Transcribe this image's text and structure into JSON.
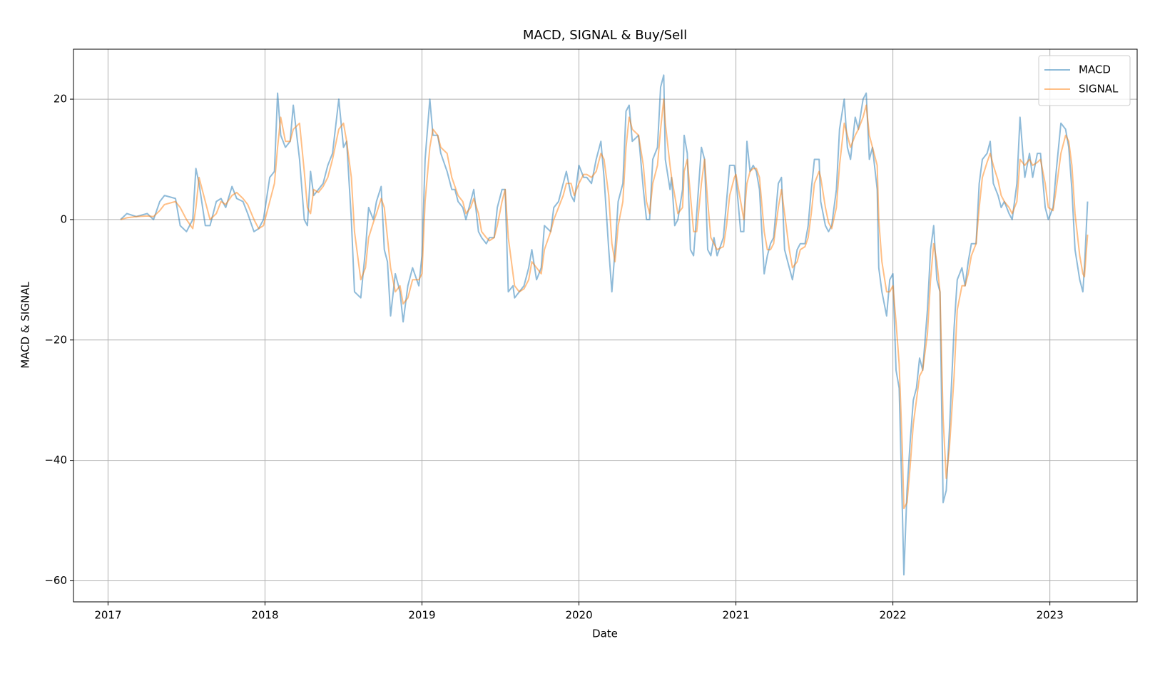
{
  "chart_data": {
    "type": "line",
    "title": "MACD, SIGNAL & Buy/Sell",
    "x_label": "Date",
    "y_label": "MACD & SIGNAL",
    "xlim": [
      2016.78,
      2023.556
    ],
    "xticks": [
      2017,
      2018,
      2019,
      2020,
      2021,
      2022,
      2023
    ],
    "ylim": [
      -63.5,
      28.3
    ],
    "yticks": [
      {
        "value": -60,
        "label": "−60"
      },
      {
        "value": -40,
        "label": "−40"
      },
      {
        "value": -20,
        "label": "−20"
      },
      0,
      20
    ],
    "grid": true,
    "legend": "upper right",
    "x": [
      2017.08,
      2017.12,
      2017.18,
      2017.25,
      2017.29,
      2017.33,
      2017.36,
      2017.43,
      2017.46,
      2017.5,
      2017.54,
      2017.56,
      2017.58,
      2017.62,
      2017.65,
      2017.69,
      2017.72,
      2017.75,
      2017.79,
      2017.82,
      2017.86,
      2017.89,
      2017.93,
      2017.96,
      2017.99,
      2018.03,
      2018.06,
      2018.08,
      2018.1,
      2018.13,
      2018.16,
      2018.18,
      2018.22,
      2018.25,
      2018.27,
      2018.29,
      2018.31,
      2018.34,
      2018.37,
      2018.4,
      2018.43,
      2018.47,
      2018.5,
      2018.52,
      2018.55,
      2018.57,
      2018.61,
      2018.64,
      2018.66,
      2018.69,
      2018.71,
      2018.74,
      2018.76,
      2018.78,
      2018.8,
      2018.83,
      2018.86,
      2018.88,
      2018.91,
      2018.94,
      2018.98,
      2019.0,
      2019.02,
      2019.05,
      2019.07,
      2019.1,
      2019.12,
      2019.16,
      2019.19,
      2019.21,
      2019.23,
      2019.26,
      2019.28,
      2019.31,
      2019.33,
      2019.36,
      2019.38,
      2019.41,
      2019.43,
      2019.46,
      2019.48,
      2019.51,
      2019.53,
      2019.55,
      2019.58,
      2019.59,
      2019.62,
      2019.65,
      2019.68,
      2019.7,
      2019.73,
      2019.76,
      2019.78,
      2019.82,
      2019.84,
      2019.87,
      2019.9,
      2019.92,
      2019.95,
      2019.97,
      2020.0,
      2020.03,
      2020.05,
      2020.08,
      2020.11,
      2020.14,
      2020.16,
      2020.19,
      2020.21,
      2020.23,
      2020.25,
      2020.28,
      2020.3,
      2020.32,
      2020.34,
      2020.38,
      2020.41,
      2020.43,
      2020.45,
      2020.47,
      2020.5,
      2020.52,
      2020.54,
      2020.55,
      2020.58,
      2020.59,
      2020.61,
      2020.63,
      2020.66,
      2020.67,
      2020.69,
      2020.71,
      2020.73,
      2020.75,
      2020.78,
      2020.8,
      2020.82,
      2020.84,
      2020.86,
      2020.88,
      2020.92,
      2020.94,
      2020.96,
      2020.99,
      2021.0,
      2021.03,
      2021.05,
      2021.07,
      2021.09,
      2021.11,
      2021.13,
      2021.15,
      2021.18,
      2021.2,
      2021.22,
      2021.24,
      2021.27,
      2021.29,
      2021.31,
      2021.34,
      2021.36,
      2021.39,
      2021.41,
      2021.44,
      2021.46,
      2021.48,
      2021.5,
      2021.53,
      2021.54,
      2021.57,
      2021.59,
      2021.61,
      2021.64,
      2021.66,
      2021.69,
      2021.71,
      2021.73,
      2021.76,
      2021.78,
      2021.81,
      2021.83,
      2021.85,
      2021.87,
      2021.9,
      2021.91,
      2021.93,
      2021.96,
      2021.98,
      2022.0,
      2022.02,
      2022.04,
      2022.06,
      2022.07,
      2022.09,
      2022.11,
      2022.13,
      2022.15,
      2022.17,
      2022.19,
      2022.22,
      2022.24,
      2022.26,
      2022.28,
      2022.3,
      2022.32,
      2022.34,
      2022.36,
      2022.39,
      2022.41,
      2022.44,
      2022.46,
      2022.48,
      2022.5,
      2022.53,
      2022.55,
      2022.57,
      2022.6,
      2022.62,
      2022.64,
      2022.67,
      2022.69,
      2022.71,
      2022.74,
      2022.76,
      2022.79,
      2022.81,
      2022.84,
      2022.87,
      2022.89,
      2022.92,
      2022.94,
      2022.97,
      2022.99,
      2023.02,
      2023.04,
      2023.07,
      2023.1,
      2023.12,
      2023.14,
      2023.16,
      2023.19,
      2023.21,
      2023.22,
      2023.24
    ],
    "series": [
      {
        "name": "MACD",
        "color": "#1f77b4",
        "values": [
          0,
          1,
          0.5,
          1,
          0,
          3,
          4,
          3.5,
          -1,
          -2,
          0,
          8.5,
          6,
          -1,
          -1,
          3,
          3.5,
          2,
          5.5,
          3.5,
          3,
          1,
          -2,
          -1.5,
          0,
          7,
          8,
          21,
          14,
          12,
          13,
          19,
          10,
          0,
          -1,
          8,
          4,
          5,
          6,
          9,
          11,
          20,
          12,
          13,
          0,
          -12,
          -13,
          -5,
          2,
          0,
          3,
          5.5,
          -5,
          -7,
          -16,
          -9,
          -12,
          -17,
          -11,
          -8,
          -11,
          -6,
          10,
          20,
          14,
          14,
          11,
          8,
          5,
          5,
          3,
          2,
          0,
          3,
          5,
          -2,
          -3,
          -4,
          -3,
          -3,
          2,
          5,
          5,
          -12,
          -11,
          -13,
          -12,
          -11,
          -8,
          -5,
          -10,
          -8,
          -1,
          -2,
          2,
          3,
          6,
          8,
          4,
          3,
          9,
          7,
          7,
          6,
          10,
          13,
          7,
          -5,
          -12,
          -5,
          3,
          6,
          18,
          19,
          13,
          14,
          5,
          0,
          0,
          10,
          12,
          22,
          24,
          10,
          5,
          7,
          -1,
          0,
          5,
          14,
          11,
          -5,
          -6,
          1,
          12,
          10,
          -5,
          -6,
          -3,
          -6,
          -3,
          3,
          9,
          9,
          7,
          -2,
          -2,
          13,
          8,
          9,
          8,
          5,
          -9,
          -6,
          -4,
          -3,
          6,
          7,
          -5,
          -8,
          -10,
          -5,
          -4,
          -4,
          -1,
          5,
          10,
          10,
          3,
          -1,
          -2,
          -1,
          5,
          15,
          20,
          12,
          10,
          17,
          15,
          20,
          21,
          10,
          12,
          5,
          -8,
          -12,
          -16,
          -10,
          -9,
          -25,
          -28,
          -48,
          -59,
          -45,
          -37,
          -30,
          -28,
          -23,
          -25,
          -15,
          -5,
          -1,
          -10,
          -12,
          -47,
          -45,
          -35,
          -18,
          -10,
          -8,
          -11,
          -7,
          -4,
          -4,
          6,
          10,
          11,
          13,
          6,
          4,
          2,
          3,
          1,
          0,
          6,
          17,
          7,
          11,
          7,
          11,
          11,
          2,
          0,
          2,
          8,
          16,
          15,
          12,
          5,
          -5,
          -10,
          -12,
          -8,
          3
        ]
      },
      {
        "name": "SIGNAL",
        "color": "#ff7f0e",
        "values": [
          0,
          0.3,
          0.5,
          0.6,
          0.5,
          1.5,
          2.5,
          3,
          2,
          0,
          -1.5,
          2,
          7,
          3,
          0,
          1,
          3,
          2.5,
          4,
          4.5,
          3.5,
          2.5,
          0,
          -1.5,
          -1,
          3,
          6,
          12,
          17,
          13,
          13,
          15,
          16,
          8,
          2,
          1,
          5,
          4.5,
          5.5,
          7,
          10,
          15,
          16,
          13,
          7,
          -2,
          -10,
          -8,
          -3,
          -0.5,
          1,
          3.5,
          2,
          -3,
          -8,
          -12,
          -11,
          -14,
          -13,
          -10,
          -10,
          -9,
          3,
          12,
          15,
          14,
          12,
          11,
          7,
          5.5,
          4,
          3,
          1,
          2,
          3.5,
          1,
          -2,
          -3,
          -3.5,
          -3,
          -1,
          3,
          5,
          -3,
          -9,
          -11,
          -12,
          -11.5,
          -10,
          -7,
          -8,
          -9,
          -5,
          -2,
          0,
          2,
          4,
          6,
          6,
          4,
          6,
          7.5,
          7.5,
          7,
          8,
          11,
          10,
          4,
          -4,
          -7,
          -1,
          3,
          12,
          17,
          15,
          14,
          9,
          3,
          1,
          6,
          9,
          15,
          20,
          16,
          9,
          7,
          4,
          1,
          2,
          8,
          10,
          4,
          -2,
          -2,
          6,
          10,
          3,
          -3,
          -4,
          -5,
          -4.5,
          -1,
          4,
          7,
          7.5,
          3,
          0,
          6,
          8,
          8.5,
          8.5,
          7,
          -2,
          -5,
          -5,
          -4,
          2,
          5,
          1,
          -5,
          -8,
          -7,
          -5,
          -4.5,
          -3,
          1,
          6,
          8,
          7,
          2,
          -0.5,
          -1.5,
          2,
          9,
          16,
          14,
          12,
          14,
          15,
          17,
          19,
          14,
          12,
          9,
          0,
          -7,
          -12,
          -12,
          -11,
          -17,
          -24,
          -38,
          -48,
          -47,
          -41,
          -34,
          -30,
          -26,
          -25,
          -19,
          -10,
          -4,
          -7,
          -12,
          -33,
          -43,
          -38,
          -26,
          -15,
          -11,
          -11,
          -9,
          -6,
          -4,
          2,
          7,
          9.5,
          11,
          9,
          6.5,
          4,
          3,
          2,
          1,
          3,
          10,
          9,
          10,
          9,
          9.5,
          10,
          6,
          2,
          1.5,
          5,
          11,
          14,
          13,
          9,
          1,
          -6,
          -9,
          -9.5,
          -2.5
        ]
      }
    ]
  }
}
